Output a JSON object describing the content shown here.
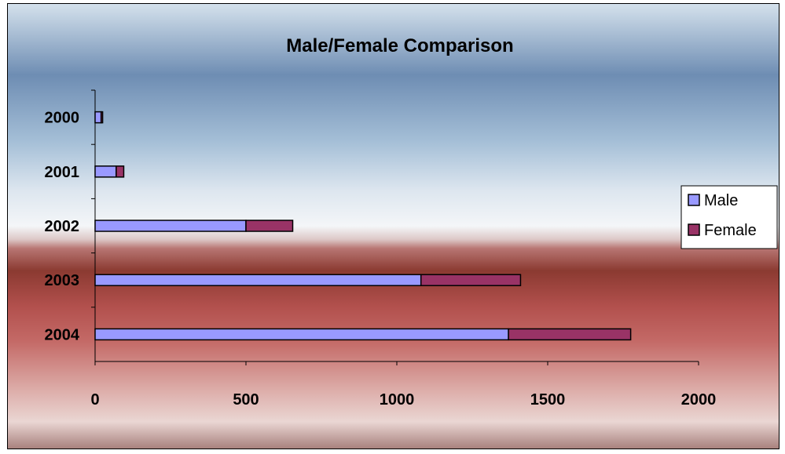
{
  "chart_data": {
    "type": "bar",
    "orientation": "horizontal",
    "stacked": true,
    "title": "Male/Female Comparison",
    "xlabel": "",
    "ylabel": "",
    "categories": [
      "2000",
      "2001",
      "2002",
      "2003",
      "2004"
    ],
    "series": [
      {
        "name": "Male",
        "color": "#9999ff",
        "values": [
          20,
          70,
          500,
          1080,
          1370
        ]
      },
      {
        "name": "Female",
        "color": "#993366",
        "values": [
          5,
          25,
          155,
          330,
          405
        ]
      }
    ],
    "xlim": [
      0,
      2000
    ],
    "xticks": [
      "0",
      "500",
      "1000",
      "1500",
      "2000"
    ],
    "grid": false,
    "legend_position": "right"
  }
}
